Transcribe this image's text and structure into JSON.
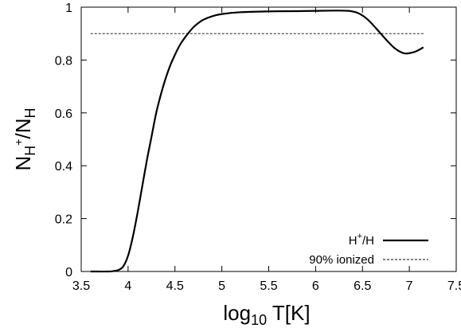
{
  "chart_data": {
    "type": "line",
    "xlabel": {
      "main": "log",
      "sub": "10",
      "rest": " T[K]"
    },
    "ylabel": {
      "n1": "N",
      "sub1": "H",
      "sup1": "+",
      "slash": "/N",
      "sub2": "H"
    },
    "xlim": [
      3.5,
      7.5
    ],
    "ylim": [
      0,
      1
    ],
    "xticks": [
      3.5,
      4,
      4.5,
      5,
      5.5,
      6,
      6.5,
      7,
      7.5
    ],
    "yticks": [
      0,
      0.2,
      0.4,
      0.6,
      0.8,
      1
    ],
    "xtick_labels": [
      "3.5",
      "4",
      "4.5",
      "5",
      "5.5",
      "6",
      "6.5",
      "7",
      "7.5"
    ],
    "ytick_labels": [
      "0",
      "0.2",
      "0.4",
      "0.6",
      "0.8",
      "1"
    ],
    "grid": false,
    "legend_position": "bottom-right",
    "series": [
      {
        "name": "H+/H",
        "legend": {
          "base": "H",
          "sup": "+",
          "rest": "/H"
        },
        "style": "solid",
        "color": "#000000",
        "x": [
          3.6,
          3.8,
          3.85,
          3.9,
          3.95,
          4.0,
          4.05,
          4.1,
          4.15,
          4.2,
          4.25,
          4.3,
          4.35,
          4.4,
          4.45,
          4.5,
          4.55,
          4.6,
          4.65,
          4.7,
          4.75,
          4.8,
          4.9,
          5.0,
          5.2,
          5.5,
          5.8,
          6.0,
          6.2,
          6.35,
          6.45,
          6.55,
          6.65,
          6.75,
          6.85,
          6.95,
          7.05,
          7.1,
          7.15
        ],
        "y": [
          0.0,
          0.0,
          0.002,
          0.006,
          0.02,
          0.06,
          0.13,
          0.22,
          0.32,
          0.42,
          0.51,
          0.6,
          0.67,
          0.73,
          0.78,
          0.82,
          0.855,
          0.882,
          0.905,
          0.925,
          0.94,
          0.952,
          0.966,
          0.974,
          0.981,
          0.984,
          0.985,
          0.986,
          0.987,
          0.986,
          0.978,
          0.955,
          0.918,
          0.878,
          0.843,
          0.825,
          0.83,
          0.838,
          0.848
        ]
      },
      {
        "name": "90% ionized",
        "style": "dashed",
        "color": "#000000",
        "x": [
          3.6,
          7.15
        ],
        "y": [
          0.9,
          0.9
        ]
      }
    ]
  }
}
